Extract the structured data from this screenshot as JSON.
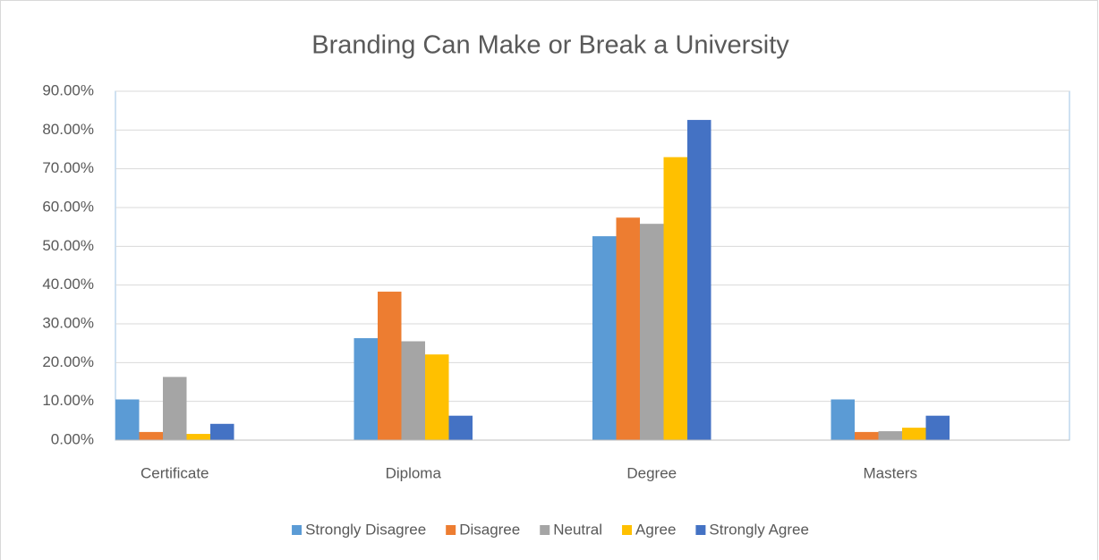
{
  "chart_data": {
    "type": "bar",
    "title": "Branding Can Make or Break a University",
    "categories": [
      "Certificate",
      "Diploma",
      "Degree",
      "Masters"
    ],
    "series": [
      {
        "name": "Strongly Disagree",
        "color": "#5b9bd5",
        "values": [
          10.5,
          26.3,
          52.6,
          10.5
        ]
      },
      {
        "name": "Disagree",
        "color": "#ed7d31",
        "values": [
          2.1,
          38.3,
          57.4,
          2.1
        ]
      },
      {
        "name": "Neutral",
        "color": "#a5a5a5",
        "values": [
          16.3,
          25.5,
          55.8,
          2.3
        ]
      },
      {
        "name": "Agree",
        "color": "#ffc000",
        "values": [
          1.6,
          22.1,
          73.0,
          3.2
        ]
      },
      {
        "name": "Strongly Agree",
        "color": "#4472c4",
        "values": [
          4.2,
          6.3,
          82.6,
          6.3
        ]
      }
    ],
    "ylim": [
      0,
      90
    ],
    "yticks": [
      {
        "value": 0,
        "label": "0.00%"
      },
      {
        "value": 10,
        "label": "10.00%"
      },
      {
        "value": 20,
        "label": "20.00%"
      },
      {
        "value": 30,
        "label": "30.00%"
      },
      {
        "value": 40,
        "label": "40.00%"
      },
      {
        "value": 50,
        "label": "50.00%"
      },
      {
        "value": 60,
        "label": "60.00%"
      },
      {
        "value": 70,
        "label": "70.00%"
      },
      {
        "value": 80,
        "label": "80.00%"
      },
      {
        "value": 90,
        "label": "90.00%"
      }
    ],
    "grid": true,
    "legend": "bottom"
  }
}
